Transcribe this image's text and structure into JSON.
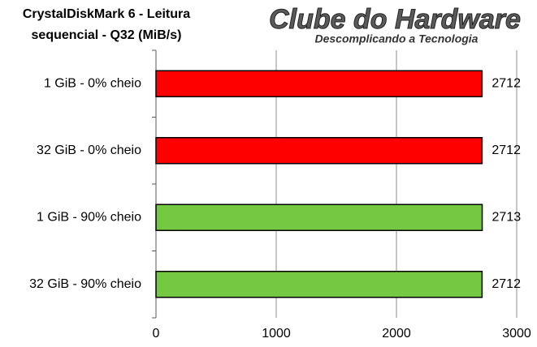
{
  "chart_data": {
    "type": "hbar",
    "title": [
      "CrystalDiskMark 6 - Leitura",
      "sequencial - Q32 (MiB/s)"
    ],
    "logo": {
      "name": "Clube do Hardware",
      "tagline": "Descomplicando a Tecnologia"
    },
    "categories": [
      "1 GiB - 0% cheio",
      "32 GiB - 0% cheio",
      "1 GiB - 90% cheio",
      "32 GiB - 90% cheio"
    ],
    "values": [
      2712,
      2712,
      2713,
      2712
    ],
    "colors": [
      "#ff0000",
      "#ff0000",
      "#74c943",
      "#74c943"
    ],
    "xlim": [
      0,
      3000
    ],
    "xticks": [
      0,
      1000,
      2000,
      3000
    ],
    "grid": true
  }
}
